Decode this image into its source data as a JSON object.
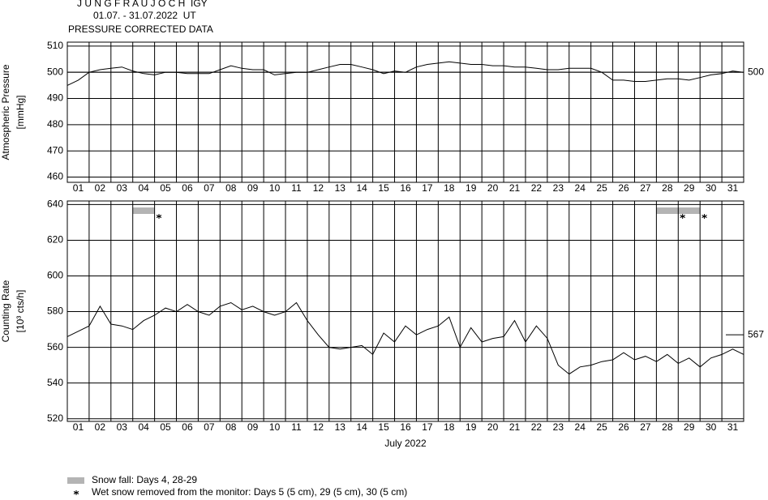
{
  "chart_data": [
    {
      "type": "line",
      "title": "J U N G F R A U J O C H  IGY",
      "subtitle": "01.07. - 31.07.2022  UT",
      "note": "PRESSURE CORRECTED DATA",
      "ylabel": [
        "Atmospheric Pressure",
        "[mmHg]"
      ],
      "x": [
        1,
        1.5,
        2,
        2.5,
        3,
        3.5,
        4,
        4.5,
        5,
        5.5,
        6,
        6.5,
        7,
        7.5,
        8,
        8.5,
        9,
        9.5,
        10,
        10.5,
        11,
        11.5,
        12,
        12.5,
        13,
        13.5,
        14,
        14.5,
        15,
        15.5,
        16,
        16.5,
        17,
        17.5,
        18,
        18.5,
        19,
        19.5,
        20,
        20.5,
        21,
        21.5,
        22,
        22.5,
        23,
        23.5,
        24,
        24.5,
        25,
        25.5,
        26,
        26.5,
        27,
        27.5,
        28,
        28.5,
        29,
        29.5,
        30,
        30.5,
        31,
        31.5,
        32
      ],
      "series": [
        {
          "color": "#000000",
          "values": [
            495,
            497,
            500,
            501,
            501.5,
            502,
            500.5,
            499.5,
            499,
            500,
            500,
            499.5,
            499.5,
            499.5,
            501,
            502.5,
            501.5,
            501,
            501,
            499,
            499.5,
            500,
            500,
            501,
            502,
            503,
            503,
            502,
            501,
            499.5,
            500.5,
            500,
            502,
            503,
            503.5,
            504,
            503.5,
            503,
            503,
            502.5,
            502.5,
            502,
            502,
            501.5,
            501,
            501,
            501.5,
            501.5,
            501.5,
            500,
            497,
            497,
            496.5,
            496.5,
            497,
            497.5,
            497.5,
            497,
            498,
            499,
            499.5,
            500.5,
            500
          ]
        }
      ],
      "xlim": [
        1,
        32
      ],
      "ylim": [
        458,
        511.5
      ],
      "yticks": [
        460,
        470,
        480,
        490,
        500,
        510
      ],
      "xticks": [
        {
          "value": 1,
          "label": "01"
        },
        {
          "value": 2,
          "label": "02"
        },
        {
          "value": 3,
          "label": "03"
        },
        {
          "value": 4,
          "label": "04"
        },
        {
          "value": 5,
          "label": "05"
        },
        {
          "value": 6,
          "label": "06"
        },
        {
          "value": 7,
          "label": "07"
        },
        {
          "value": 8,
          "label": "08"
        },
        {
          "value": 9,
          "label": "09"
        },
        {
          "value": 10,
          "label": "10"
        },
        {
          "value": 11,
          "label": "11"
        },
        {
          "value": 12,
          "label": "12"
        },
        {
          "value": 13,
          "label": "13"
        },
        {
          "value": 14,
          "label": "14"
        },
        {
          "value": 15,
          "label": "15"
        },
        {
          "value": 16,
          "label": "16"
        },
        {
          "value": 17,
          "label": "17"
        },
        {
          "value": 18,
          "label": "18"
        },
        {
          "value": 19,
          "label": "19"
        },
        {
          "value": 20,
          "label": "20"
        },
        {
          "value": 21,
          "label": "21"
        },
        {
          "value": 22,
          "label": "22"
        },
        {
          "value": 23,
          "label": "23"
        },
        {
          "value": 24,
          "label": "24"
        },
        {
          "value": 25,
          "label": "25"
        },
        {
          "value": 26,
          "label": "26"
        },
        {
          "value": 27,
          "label": "27"
        },
        {
          "value": 28,
          "label": "28"
        },
        {
          "value": 29,
          "label": "29"
        },
        {
          "value": 30,
          "label": "30"
        },
        {
          "value": 31,
          "label": "31"
        }
      ],
      "reference_line": {
        "value": 500,
        "label": "500"
      },
      "grid": true
    },
    {
      "type": "line",
      "ylabel": [
        "Counting Rate",
        "[10³ cts/h]"
      ],
      "xlabel": "July 2022",
      "x": [
        1,
        1.5,
        2,
        2.5,
        3,
        3.5,
        4,
        4.5,
        5,
        5.5,
        6,
        6.5,
        7,
        7.5,
        8,
        8.5,
        9,
        9.5,
        10,
        10.5,
        11,
        11.5,
        12,
        12.5,
        13,
        13.5,
        14,
        14.5,
        15,
        15.5,
        16,
        16.5,
        17,
        17.5,
        18,
        18.5,
        19,
        19.5,
        20,
        20.5,
        21,
        21.5,
        22,
        22.5,
        23,
        23.5,
        24,
        24.5,
        25,
        25.5,
        26,
        26.5,
        27,
        27.5,
        28,
        28.5,
        29,
        29.5,
        30,
        30.5,
        31,
        31.5,
        32
      ],
      "series": [
        {
          "color": "#000000",
          "values": [
            566,
            569,
            572,
            583,
            573,
            572,
            570,
            575,
            578,
            582,
            580,
            584,
            580,
            578,
            583,
            585,
            581,
            583,
            580,
            578,
            580,
            585,
            575,
            567,
            560,
            559,
            560,
            561,
            556,
            568,
            563,
            572,
            567,
            570,
            572,
            577,
            560,
            571,
            563,
            565,
            566,
            575,
            563,
            572,
            565,
            550,
            545,
            549,
            550,
            552,
            553,
            557,
            553,
            555,
            552,
            556,
            551,
            554,
            549,
            554,
            556,
            559,
            556
          ]
        }
      ],
      "xlim": [
        1,
        32
      ],
      "ylim": [
        518.5,
        642
      ],
      "yticks": [
        520,
        540,
        560,
        580,
        600,
        620,
        640
      ],
      "xticks": [
        {
          "value": 1,
          "label": "01"
        },
        {
          "value": 2,
          "label": "02"
        },
        {
          "value": 3,
          "label": "03"
        },
        {
          "value": 4,
          "label": "04"
        },
        {
          "value": 5,
          "label": "05"
        },
        {
          "value": 6,
          "label": "06"
        },
        {
          "value": 7,
          "label": "07"
        },
        {
          "value": 8,
          "label": "08"
        },
        {
          "value": 9,
          "label": "09"
        },
        {
          "value": 10,
          "label": "10"
        },
        {
          "value": 11,
          "label": "11"
        },
        {
          "value": 12,
          "label": "12"
        },
        {
          "value": 13,
          "label": "13"
        },
        {
          "value": 14,
          "label": "14"
        },
        {
          "value": 15,
          "label": "15"
        },
        {
          "value": 16,
          "label": "16"
        },
        {
          "value": 17,
          "label": "17"
        },
        {
          "value": 18,
          "label": "18"
        },
        {
          "value": 19,
          "label": "19"
        },
        {
          "value": 20,
          "label": "20"
        },
        {
          "value": 21,
          "label": "21"
        },
        {
          "value": 22,
          "label": "22"
        },
        {
          "value": 23,
          "label": "23"
        },
        {
          "value": 24,
          "label": "24"
        },
        {
          "value": 25,
          "label": "25"
        },
        {
          "value": 26,
          "label": "26"
        },
        {
          "value": 27,
          "label": "27"
        },
        {
          "value": 28,
          "label": "28"
        },
        {
          "value": 29,
          "label": "29"
        },
        {
          "value": 30,
          "label": "30"
        },
        {
          "value": 31,
          "label": "31"
        }
      ],
      "reference_line": {
        "value": 567,
        "label": "567"
      },
      "grid": true,
      "snow_fall_days": [
        4,
        28,
        29
      ],
      "snow_removed_days": [
        5,
        29,
        30
      ],
      "legend": [
        "Snow fall: Days 4, 28-29",
        "Wet snow removed from the monitor: Days 5 (5 cm), 29 (5 cm), 30 (5 cm)"
      ]
    }
  ]
}
